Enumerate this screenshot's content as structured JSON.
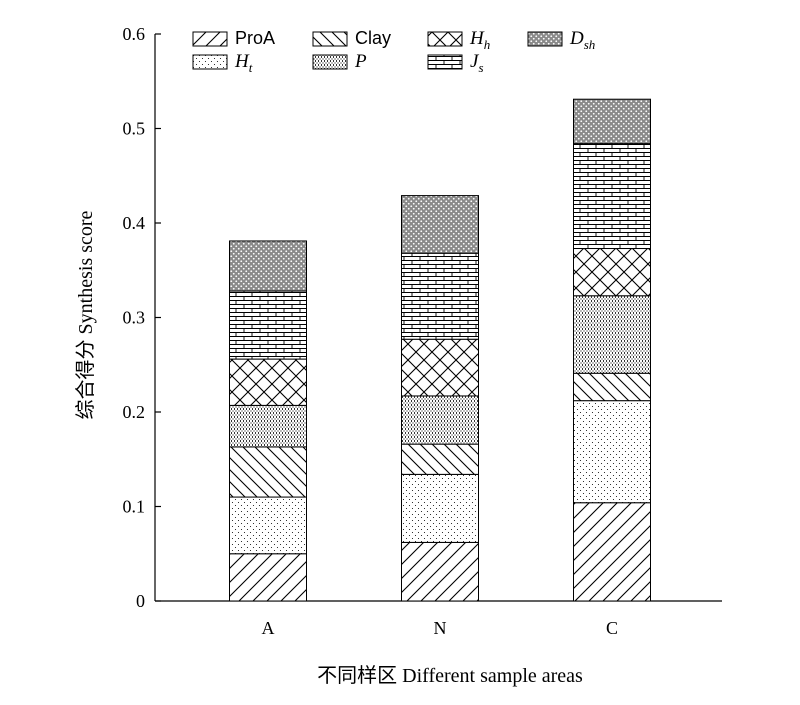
{
  "chart_data": {
    "type": "bar",
    "stacked": true,
    "categories": [
      "A",
      "N",
      "C"
    ],
    "series": [
      {
        "name": "ProA",
        "label_main": "ProA",
        "label_sub": "",
        "italic": false,
        "pattern": "diag-right",
        "values": [
          0.05,
          0.062,
          0.104
        ]
      },
      {
        "name": "Ht",
        "label_main": "H",
        "label_sub": "t",
        "italic": true,
        "pattern": "dots-fine",
        "values": [
          0.06,
          0.072,
          0.108
        ]
      },
      {
        "name": "Clay",
        "label_main": "Clay",
        "label_sub": "",
        "italic": false,
        "pattern": "diag-left",
        "values": [
          0.053,
          0.032,
          0.029
        ]
      },
      {
        "name": "P",
        "label_main": "P",
        "label_sub": "",
        "italic": true,
        "pattern": "vlines-dense",
        "values": [
          0.044,
          0.051,
          0.082
        ]
      },
      {
        "name": "Hh",
        "label_main": "H",
        "label_sub": "h",
        "italic": true,
        "pattern": "crosshatch",
        "values": [
          0.049,
          0.06,
          0.05
        ]
      },
      {
        "name": "Js",
        "label_main": "J",
        "label_sub": "s",
        "italic": true,
        "pattern": "brick",
        "values": [
          0.072,
          0.091,
          0.111
        ]
      },
      {
        "name": "Dsh",
        "label_main": "D",
        "label_sub": "sh",
        "italic": true,
        "pattern": "dense-dots",
        "values": [
          0.053,
          0.061,
          0.047
        ]
      }
    ],
    "legend_order": [
      "ProA",
      "Clay",
      "Hh",
      "Dsh",
      "Ht",
      "P",
      "Js"
    ],
    "legend_placement": "top-left, inside plot",
    "ylim": [
      0,
      0.6
    ],
    "yticks": [
      "0",
      "0.1",
      "0.2",
      "0.3",
      "0.4",
      "0.5",
      "0.6"
    ],
    "ylabel": "综合得分 Synthesis score",
    "xlabel": "不同样区 Different sample areas",
    "grid": false
  }
}
